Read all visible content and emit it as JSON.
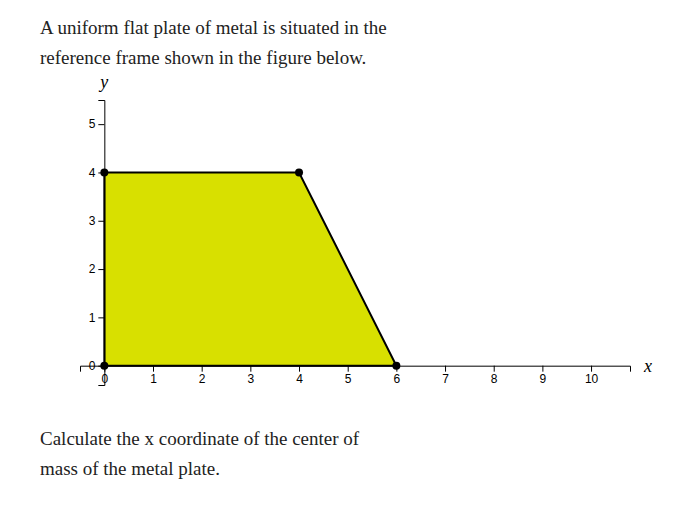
{
  "chart_data": {
    "type": "polygon",
    "title": [
      "A uniform flat plate of metal is situated in the",
      "reference frame shown in the figure below."
    ],
    "annotations": [
      "Calculate the x coordinate of the center of",
      "mass of the metal plate."
    ],
    "x": [
      0,
      6,
      4,
      0
    ],
    "values": [
      0,
      0,
      4,
      4
    ],
    "color": "#d8e000",
    "marker": "circle",
    "xlabel": "x",
    "ylabel": "y",
    "xlim": [
      -0.5,
      10.8
    ],
    "ylim": [
      -0.4,
      5.5
    ],
    "xticks": [
      0,
      1,
      2,
      3,
      4,
      5,
      6,
      7,
      8,
      9,
      10
    ],
    "yticks": [
      0,
      1,
      2,
      3,
      4,
      5
    ],
    "grid": false
  }
}
